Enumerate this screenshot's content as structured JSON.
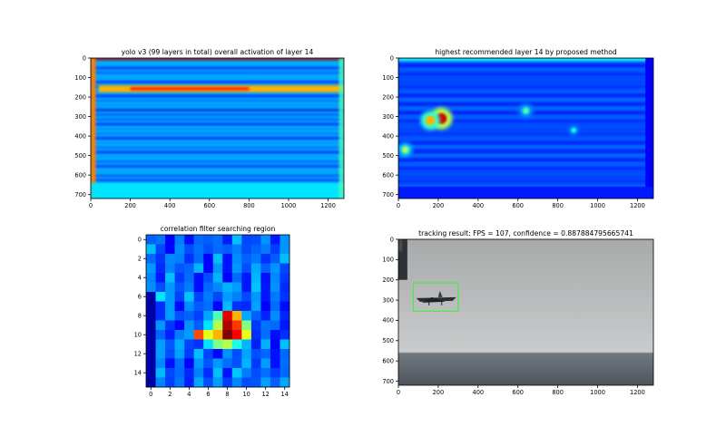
{
  "chart_data": [
    {
      "type": "heatmap",
      "title": "yolo v3 (99 layers in total) overall activation of layer 14",
      "xlim": [
        0,
        1280
      ],
      "ylim": [
        720,
        0
      ],
      "xticks": [
        0,
        200,
        400,
        600,
        800,
        1000,
        1200
      ],
      "yticks": [
        0,
        100,
        200,
        300,
        400,
        500,
        600,
        700
      ],
      "colormap": "jet",
      "features": [
        {
          "kind": "band",
          "y": [
            0,
            12
          ],
          "x": [
            0,
            1280
          ],
          "level": 0.95
        },
        {
          "kind": "band",
          "y": [
            140,
            175
          ],
          "x": [
            40,
            1280
          ],
          "level": 0.7
        },
        {
          "kind": "band",
          "y": [
            150,
            165
          ],
          "x": [
            200,
            800
          ],
          "level": 0.85
        },
        {
          "kind": "band",
          "y": [
            0,
            720
          ],
          "x": [
            0,
            25
          ],
          "level": 0.75
        },
        {
          "kind": "band",
          "y": [
            640,
            720
          ],
          "x": [
            0,
            1280
          ],
          "level": 0.35
        }
      ]
    },
    {
      "type": "heatmap",
      "title": "highest recommended layer 14 by proposed method",
      "xlim": [
        0,
        1280
      ],
      "ylim": [
        720,
        0
      ],
      "xticks": [
        0,
        200,
        400,
        600,
        800,
        1000,
        1200
      ],
      "yticks": [
        0,
        100,
        200,
        300,
        400,
        500,
        600,
        700
      ],
      "colormap": "jet",
      "features": [
        {
          "kind": "spot",
          "x": 215,
          "y": 310,
          "r": 40,
          "level": 0.92
        },
        {
          "kind": "spot",
          "x": 160,
          "y": 320,
          "r": 35,
          "level": 0.7
        },
        {
          "kind": "spot",
          "x": 35,
          "y": 470,
          "r": 25,
          "level": 0.55
        },
        {
          "kind": "spot",
          "x": 640,
          "y": 270,
          "r": 25,
          "level": 0.45
        },
        {
          "kind": "spot",
          "x": 880,
          "y": 370,
          "r": 20,
          "level": 0.4
        }
      ]
    },
    {
      "type": "heatmap",
      "title": "correlation filter searching region",
      "xlim": [
        -0.5,
        14.5
      ],
      "ylim": [
        15.5,
        -0.5
      ],
      "xticks": [
        0,
        2,
        4,
        6,
        8,
        10,
        12,
        14
      ],
      "yticks": [
        0,
        2,
        4,
        6,
        8,
        10,
        12,
        14
      ],
      "colormap": "jet",
      "grid_size": [
        15,
        16
      ],
      "cells": [
        {
          "r": 8,
          "c": 7,
          "v": 0.45
        },
        {
          "r": 8,
          "c": 8,
          "v": 0.9
        },
        {
          "r": 8,
          "c": 9,
          "v": 0.7
        },
        {
          "r": 9,
          "c": 6,
          "v": 0.35
        },
        {
          "r": 9,
          "c": 7,
          "v": 0.55
        },
        {
          "r": 9,
          "c": 8,
          "v": 0.95
        },
        {
          "r": 9,
          "c": 9,
          "v": 0.82
        },
        {
          "r": 9,
          "c": 10,
          "v": 0.5
        },
        {
          "r": 10,
          "c": 5,
          "v": 0.8
        },
        {
          "r": 10,
          "c": 6,
          "v": 0.6
        },
        {
          "r": 10,
          "c": 7,
          "v": 0.7
        },
        {
          "r": 10,
          "c": 8,
          "v": 1.0
        },
        {
          "r": 10,
          "c": 9,
          "v": 0.88
        },
        {
          "r": 10,
          "c": 10,
          "v": 0.6
        },
        {
          "r": 11,
          "c": 6,
          "v": 0.35
        },
        {
          "r": 11,
          "c": 7,
          "v": 0.5
        },
        {
          "r": 11,
          "c": 8,
          "v": 0.55
        },
        {
          "r": 11,
          "c": 9,
          "v": 0.4
        },
        {
          "r": 5,
          "c": 8,
          "v": 0.3
        },
        {
          "r": 6,
          "c": 1,
          "v": 0.35
        }
      ]
    },
    {
      "type": "image",
      "title": "tracking result: FPS = 107, confidence = 0.887884795665741",
      "xlim": [
        0,
        1280
      ],
      "ylim": [
        720,
        0
      ],
      "xticks": [
        0,
        200,
        400,
        600,
        800,
        1000,
        1200
      ],
      "yticks": [
        0,
        100,
        200,
        300,
        400,
        500,
        600,
        700
      ],
      "bounding_box": {
        "x0": 75,
        "y0": 215,
        "x1": 300,
        "y1": 355,
        "color": "#44ee44"
      },
      "horizon_y": 560
    }
  ]
}
